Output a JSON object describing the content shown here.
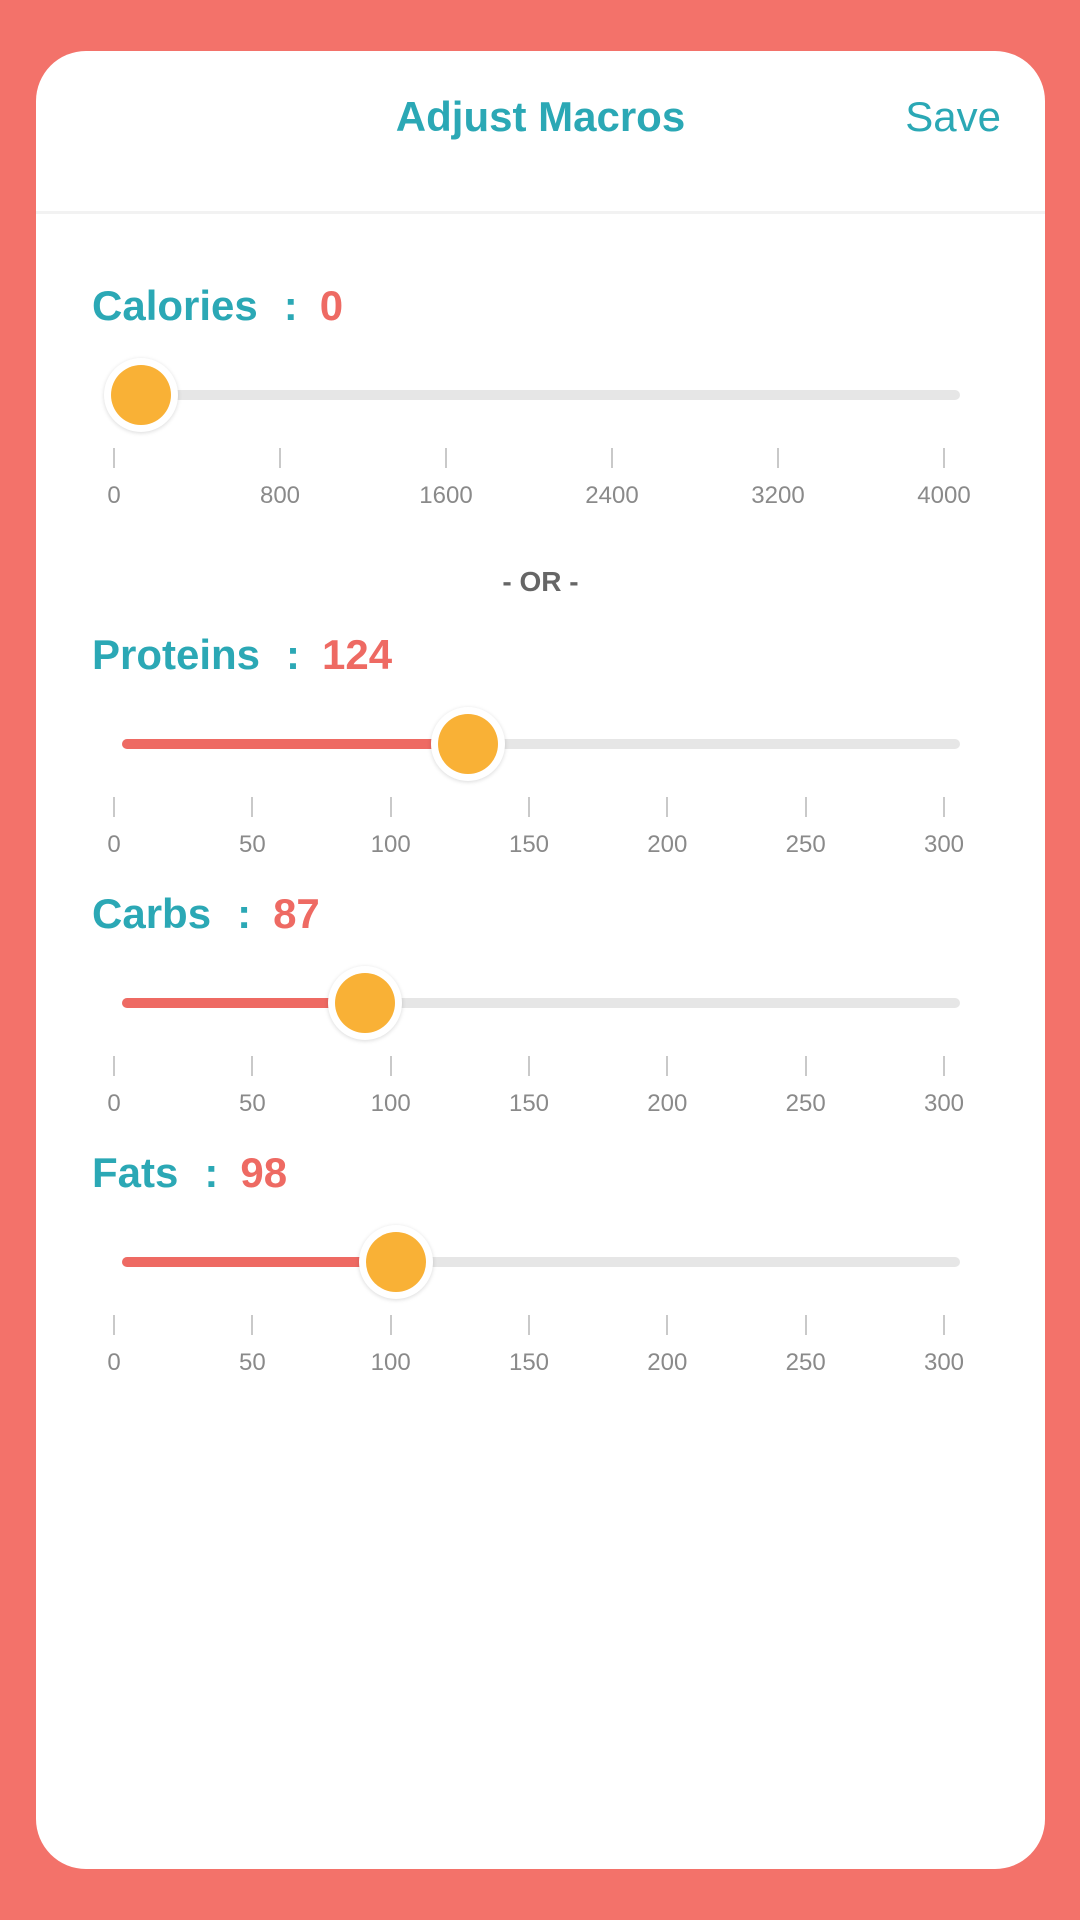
{
  "header": {
    "title": "Adjust Macros",
    "save_label": "Save"
  },
  "separator": ":",
  "divider_text": "- OR -",
  "calories": {
    "label": "Calories",
    "value": "0",
    "slider_value": 0,
    "min": 0,
    "max": 4000,
    "ticks": [
      "0",
      "800",
      "1600",
      "2400",
      "3200",
      "4000"
    ]
  },
  "proteins": {
    "label": "Proteins",
    "value": "124",
    "slider_value": 124,
    "min": 0,
    "max": 300,
    "ticks": [
      "0",
      "50",
      "100",
      "150",
      "200",
      "250",
      "300"
    ]
  },
  "carbs": {
    "label": "Carbs",
    "value": "87",
    "slider_value": 87,
    "min": 0,
    "max": 300,
    "ticks": [
      "0",
      "50",
      "100",
      "150",
      "200",
      "250",
      "300"
    ]
  },
  "fats": {
    "label": "Fats",
    "value": "98",
    "slider_value": 98,
    "min": 0,
    "max": 300,
    "ticks": [
      "0",
      "50",
      "100",
      "150",
      "200",
      "250",
      "300"
    ]
  },
  "colors": {
    "background": "#F3726A",
    "accent_teal": "#2BA8B5",
    "value_red": "#EE6A63",
    "thumb_orange": "#F9B136",
    "track_gray": "#E6E6E6"
  }
}
